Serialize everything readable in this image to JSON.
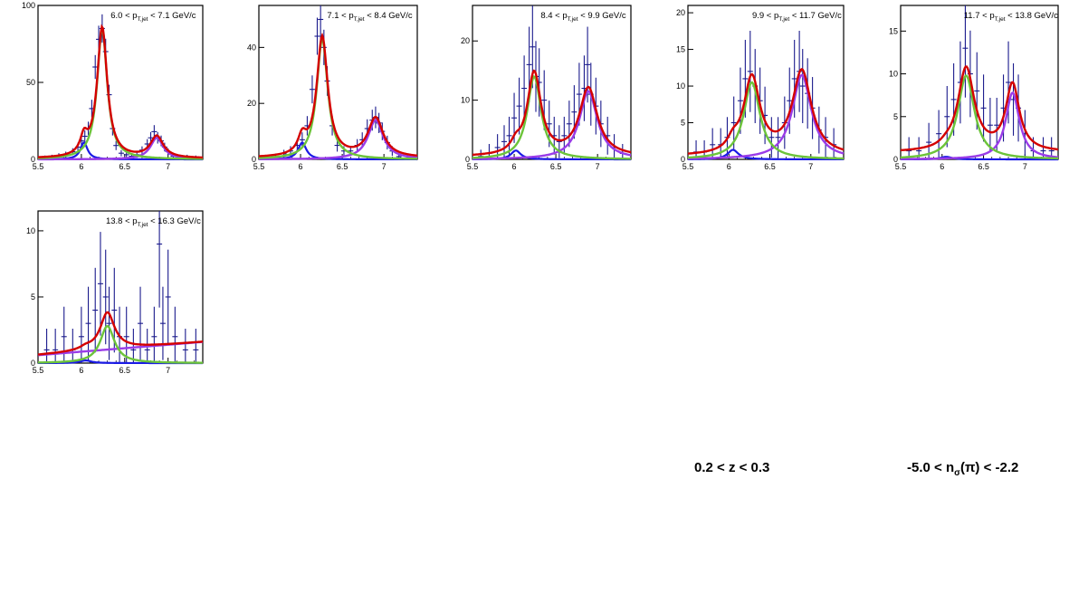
{
  "footer": {
    "z_range": "0.2 < z < 0.3",
    "nsigma_prefix": "-5.0 < n",
    "nsigma_sub": "σ",
    "nsigma_suffix": "(π) < -2.2"
  },
  "colors": {
    "data": "#1a1a8c",
    "total_fit": "#d40000",
    "blue_peak": "#1a1ae6",
    "green_peak": "#6cc43a",
    "purple_peak": "#9a3ce8"
  },
  "chart_data": [
    {
      "type": "scatter",
      "label_pre": "6.0 < p",
      "label_sub": "T,jet",
      "label_post": " < 7.1 GeV/c",
      "xlim": [
        5.5,
        7.4
      ],
      "ylim": [
        0,
        100
      ],
      "xticks": [
        "5.5",
        "6",
        "6.5",
        "7"
      ],
      "yticks": [
        "0",
        "50",
        "100"
      ],
      "peaks": {
        "blue": [
          11,
          6.03,
          0.05
        ],
        "green": [
          85,
          6.24,
          0.07
        ],
        "purple": [
          14,
          6.87,
          0.09
        ]
      },
      "bkg": [
        0.5,
        0.5
      ],
      "x": [
        5.58,
        5.66,
        5.74,
        5.82,
        5.9,
        5.96,
        6.0,
        6.04,
        6.08,
        6.12,
        6.16,
        6.2,
        6.24,
        6.28,
        6.32,
        6.36,
        6.4,
        6.46,
        6.52,
        6.58,
        6.64,
        6.7,
        6.76,
        6.8,
        6.84,
        6.88,
        6.92,
        6.96,
        7.0,
        7.06,
        7.14,
        7.22,
        7.32
      ],
      "y": [
        0.5,
        1,
        2,
        3,
        5,
        8,
        12,
        15,
        20,
        33,
        60,
        78,
        85,
        70,
        42,
        20,
        9,
        4,
        3,
        2,
        3,
        6,
        10,
        14,
        18,
        14,
        12,
        8,
        5,
        2,
        1,
        1,
        0.5
      ]
    },
    {
      "type": "scatter",
      "label_pre": "7.1 < p",
      "label_sub": "T,jet",
      "label_post": " < 8.4 GeV/c",
      "xlim": [
        5.5,
        7.4
      ],
      "ylim": [
        0,
        55
      ],
      "xticks": [
        "5.5",
        "6",
        "6.5",
        "7"
      ],
      "yticks": [
        "0",
        "20",
        "40"
      ],
      "peaks": {
        "blue": [
          6,
          6.02,
          0.06
        ],
        "green": [
          43,
          6.26,
          0.08
        ],
        "purple": [
          14,
          6.9,
          0.11
        ]
      },
      "bkg": [
        0.5,
        0.5
      ],
      "x": [
        5.6,
        5.7,
        5.8,
        5.88,
        5.96,
        6.02,
        6.08,
        6.14,
        6.2,
        6.24,
        6.28,
        6.32,
        6.38,
        6.44,
        6.52,
        6.6,
        6.68,
        6.74,
        6.8,
        6.86,
        6.9,
        6.94,
        6.98,
        7.04,
        7.1,
        7.18,
        7.28
      ],
      "y": [
        0.5,
        1,
        2,
        3,
        5,
        7,
        12,
        25,
        44,
        50,
        40,
        28,
        12,
        5,
        3,
        3,
        5,
        7,
        11,
        14,
        15,
        13,
        10,
        6,
        3,
        1,
        0.5
      ]
    },
    {
      "type": "scatter",
      "label_pre": "8.4 < p",
      "label_sub": "T,jet",
      "label_post": " < 9.9 GeV/c",
      "xlim": [
        5.5,
        7.4
      ],
      "ylim": [
        0,
        26
      ],
      "xticks": [
        "5.5",
        "6",
        "6.5",
        "7"
      ],
      "yticks": [
        "0",
        "10",
        "20"
      ],
      "peaks": {
        "blue": [
          1.5,
          6.02,
          0.07
        ],
        "green": [
          14,
          6.24,
          0.1
        ],
        "purple": [
          11.5,
          6.89,
          0.13
        ]
      },
      "bkg": [
        0.4,
        0.4
      ],
      "x": [
        5.6,
        5.7,
        5.8,
        5.88,
        5.94,
        6.0,
        6.06,
        6.12,
        6.18,
        6.22,
        6.26,
        6.3,
        6.36,
        6.42,
        6.48,
        6.54,
        6.6,
        6.66,
        6.72,
        6.78,
        6.84,
        6.88,
        6.92,
        6.98,
        7.04,
        7.12,
        7.2,
        7.3
      ],
      "y": [
        0.5,
        1,
        2,
        3,
        4,
        7,
        9,
        12,
        16,
        19,
        14,
        13,
        10,
        6,
        4,
        3,
        4,
        6,
        8,
        11,
        12,
        16,
        11,
        9,
        6,
        4,
        2,
        1
      ]
    },
    {
      "type": "scatter",
      "label_pre": "9.9 < p",
      "label_sub": "T,jet",
      "label_post": " < 11.7 GeV/c",
      "xlim": [
        5.5,
        7.4
      ],
      "ylim": [
        0,
        21
      ],
      "xticks": [
        "5.5",
        "6",
        "6.5",
        "7"
      ],
      "yticks": [
        "0",
        "5",
        "10",
        "15",
        "20"
      ],
      "peaks": {
        "blue": [
          1.3,
          6.05,
          0.08
        ],
        "green": [
          10.5,
          6.28,
          0.12
        ],
        "purple": [
          11.5,
          6.89,
          0.14
        ]
      },
      "bkg": [
        0.4,
        0.4
      ],
      "x": [
        5.6,
        5.7,
        5.8,
        5.9,
        5.98,
        6.06,
        6.14,
        6.2,
        6.26,
        6.32,
        6.38,
        6.44,
        6.52,
        6.6,
        6.68,
        6.74,
        6.8,
        6.86,
        6.9,
        6.96,
        7.02,
        7.1,
        7.18,
        7.28
      ],
      "y": [
        1,
        1,
        2,
        2,
        3,
        5,
        8,
        11,
        12,
        10,
        8,
        6,
        3,
        3,
        5,
        8,
        11,
        12,
        10,
        9,
        7,
        4,
        3,
        2
      ]
    },
    {
      "type": "scatter",
      "label_pre": "11.7 < p",
      "label_sub": "T,jet",
      "label_post": " < 13.8 GeV/c",
      "xlim": [
        5.5,
        7.4
      ],
      "ylim": [
        0,
        18
      ],
      "xticks": [
        "5.5",
        "6",
        "6.5",
        "7"
      ],
      "yticks": [
        "0",
        "5",
        "10",
        "15"
      ],
      "peaks": {
        "blue": [
          0.3,
          6.05,
          0.08
        ],
        "green": [
          9.8,
          6.29,
          0.12
        ],
        "purple": [
          7.8,
          6.85,
          0.1
        ]
      },
      "bkg": [
        0.8,
        0.8
      ],
      "x": [
        5.6,
        5.72,
        5.84,
        5.96,
        6.06,
        6.14,
        6.22,
        6.28,
        6.34,
        6.42,
        6.5,
        6.58,
        6.66,
        6.74,
        6.8,
        6.86,
        6.92,
        7.0,
        7.1,
        7.22,
        7.32
      ],
      "y": [
        1,
        1,
        2,
        3,
        5,
        7,
        9,
        13,
        10,
        8,
        6,
        4,
        4,
        6,
        9,
        7,
        6,
        3,
        1,
        1,
        1
      ]
    },
    {
      "type": "scatter",
      "label_pre": "13.8 < p",
      "label_sub": "T,jet",
      "label_post": " < 16.3 GeV/c",
      "xlim": [
        5.5,
        7.4
      ],
      "ylim": [
        0,
        11.5
      ],
      "xticks": [
        "5.5",
        "6",
        "6.5",
        "7"
      ],
      "yticks": [
        "0",
        "5",
        "10"
      ],
      "peaks": {
        "blue": [
          0.2,
          6.05,
          0.08
        ],
        "green": [
          2.8,
          6.3,
          0.1
        ],
        "purple": [
          0,
          6.9,
          0.1
        ]
      },
      "bkg": [
        0.6,
        1.6
      ],
      "x": [
        5.6,
        5.7,
        5.8,
        5.9,
        6.0,
        6.08,
        6.16,
        6.22,
        6.28,
        6.32,
        6.38,
        6.44,
        6.52,
        6.6,
        6.68,
        6.76,
        6.84,
        6.9,
        6.94,
        7.0,
        7.08,
        7.2,
        7.32
      ],
      "y": [
        1,
        1,
        2,
        1,
        2,
        3,
        4,
        6,
        5,
        3,
        4,
        2,
        2,
        1,
        3,
        1,
        2,
        9,
        3,
        5,
        2,
        1,
        1
      ]
    }
  ]
}
